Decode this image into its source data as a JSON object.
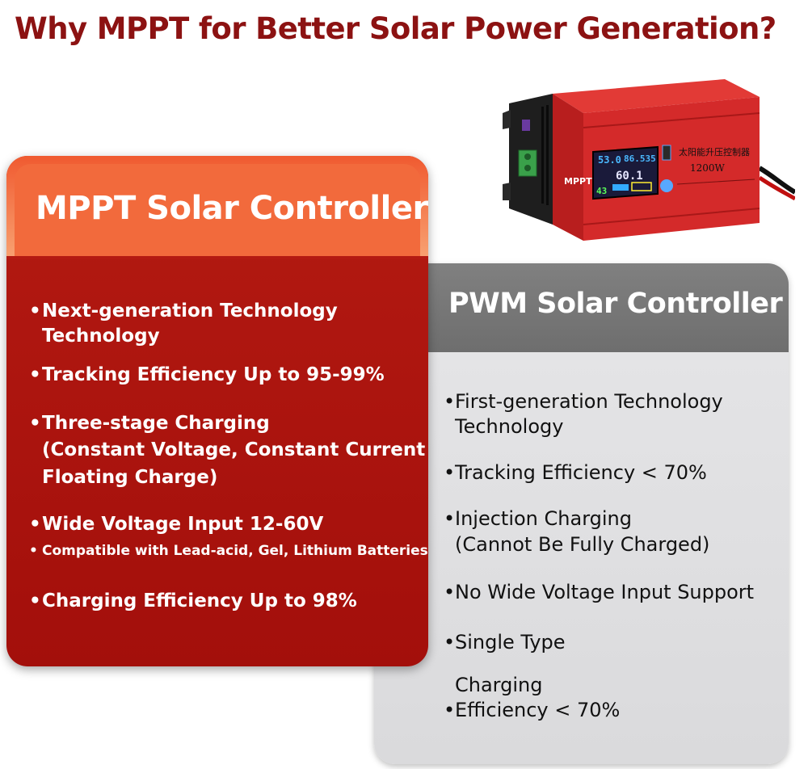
{
  "title": "Why MPPT for Better Solar Power Generation?",
  "mppt": {
    "heading": "MPPT Solar Controller",
    "items": [
      "Next-generation Technology",
      "Technology",
      "Tracking Efficiency Up to 95-99%",
      "Three-stage Charging",
      "(Constant Voltage, Constant Current",
      "Floating Charge)",
      "Wide Voltage Input 12-60V",
      "Compatible with Lead-acid, Gel, Lithium Batteries",
      "Charging Efficiency Up to 98%"
    ]
  },
  "pwm": {
    "heading": "PWM Solar Controller",
    "items": [
      "First-generation Technology",
      "Technology",
      "Tracking Efficiency < 70%",
      "Injection Charging",
      "(Cannot Be Fully Charged)",
      "No Wide Voltage Input Support",
      "Single Type",
      "Charging",
      "Efficiency < 70%"
    ]
  },
  "product": {
    "brand_label": "MPPT",
    "chinese_label": "太阳能升压控制器",
    "power_label": "1200W",
    "display_line1": "53.0",
    "display_line1b": "86.535",
    "display_line2": "60.1",
    "display_line3": "43",
    "colors": {
      "body": "#d42a2a",
      "screen": "#1a1a3a"
    }
  }
}
